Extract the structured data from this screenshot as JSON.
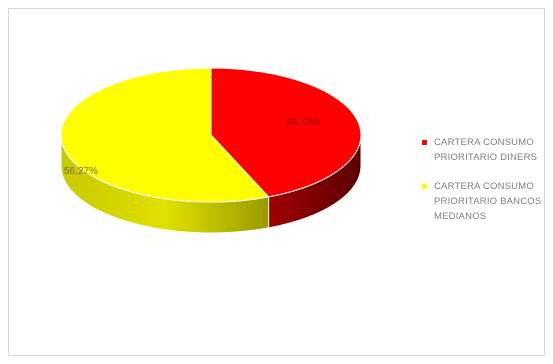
{
  "chart_data": {
    "type": "pie",
    "title": "",
    "series": [
      {
        "values": [
          43.73,
          56.27
        ],
        "labels": [
          "CARTERA CONSUMO PRIORITARIO DINERS",
          "CARTERA CONSUMO PRIORITARIO BANCOS MEDIANOS"
        ],
        "data_labels": [
          "43,73%",
          "56,27%"
        ],
        "colors": [
          "#ff0000",
          "#ffff00"
        ]
      }
    ],
    "legend_position": "right",
    "style": "3d"
  },
  "legend": {
    "items": [
      {
        "label": "CARTERA CONSUMO PRIORITARIO DINERS",
        "color": "#ff0000"
      },
      {
        "label": "CARTERA CONSUMO PRIORITARIO BANCOS MEDIANOS",
        "color": "#ffff00"
      }
    ]
  }
}
